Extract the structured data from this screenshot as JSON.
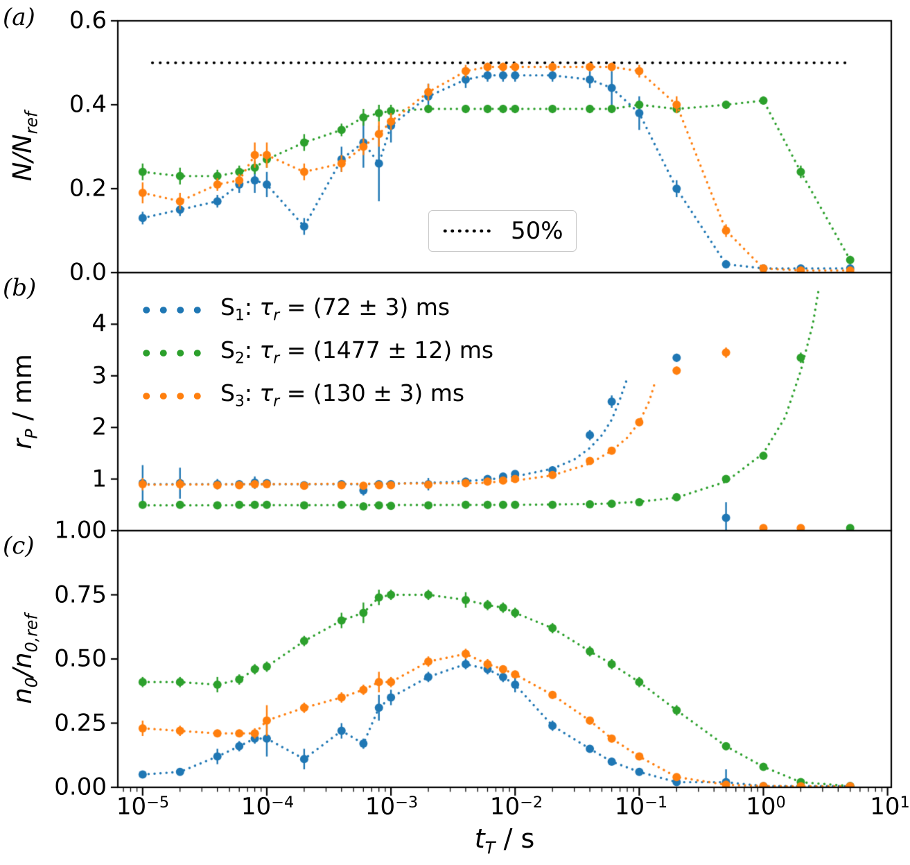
{
  "panels": {
    "a": "(a)",
    "b": "(b)",
    "c": "(c)"
  },
  "colors": {
    "s1": "#1f77b4",
    "s2": "#2ca02c",
    "s3": "#ff7f0e",
    "hline": "#000000"
  },
  "labels": {
    "ya": {
      "p1": "N/N",
      "s1": "ref"
    },
    "yb": {
      "p1": "r",
      "s1": "P",
      "p2": " / mm"
    },
    "yc": {
      "p1": "n",
      "s1": "0",
      "p2": "/n",
      "s2": "0,ref"
    },
    "x": {
      "p1": "t",
      "s1": "T",
      "p2": " / s"
    }
  },
  "legend_b": [
    {
      "p1": "S",
      "s1": "1",
      "p2": ": ",
      "tau": "τ",
      "taus": "r",
      "rest": " = (72 ± 3) ms"
    },
    {
      "p1": "S",
      "s1": "2",
      "p2": ": ",
      "tau": "τ",
      "taus": "r",
      "rest": " = (1477 ± 12) ms"
    },
    {
      "p1": "S",
      "s1": "3",
      "p2": ": ",
      "tau": "τ",
      "taus": "r",
      "rest": " = (130 ± 3) ms"
    }
  ],
  "xaxis": {
    "scale": "log",
    "xlim_exp": [
      -5.2,
      1.03
    ],
    "ticks": [
      {
        "base": "10",
        "exp": "−5"
      },
      {
        "base": "10",
        "exp": "−4"
      },
      {
        "base": "10",
        "exp": "−3"
      },
      {
        "base": "10",
        "exp": "−2"
      },
      {
        "base": "10",
        "exp": "−1"
      },
      {
        "base": "10",
        "exp": "0"
      },
      {
        "base": "10",
        "exp": "1"
      }
    ]
  },
  "chart_data": [
    {
      "id": "a",
      "type": "scatter",
      "ylabel": "N/N_ref",
      "ylim": [
        0,
        0.6
      ],
      "yticks": [
        0,
        0.2,
        0.4,
        0.6
      ],
      "ytick_labels": [
        "0.0",
        "0.2",
        "0.4",
        "0.6"
      ],
      "hline": {
        "y": 0.5,
        "label": "50%",
        "color": "#000000",
        "style": "dotted"
      },
      "x": [
        1e-05,
        2e-05,
        4e-05,
        6e-05,
        8e-05,
        0.0001,
        0.0002,
        0.0004,
        0.0006,
        0.0008,
        0.001,
        0.002,
        0.004,
        0.006,
        0.008,
        0.01,
        0.02,
        0.04,
        0.06,
        0.1,
        0.2,
        0.5,
        1,
        2,
        5
      ],
      "series": [
        {
          "name": "S1",
          "color": "#1f77b4",
          "connect": true,
          "values": [
            0.13,
            0.15,
            0.17,
            0.21,
            0.22,
            0.21,
            0.11,
            0.27,
            0.31,
            0.26,
            0.35,
            0.42,
            0.46,
            0.47,
            0.47,
            0.47,
            0.47,
            0.46,
            0.44,
            0.38,
            0.2,
            0.02,
            0.01,
            0.01,
            0.01
          ],
          "errors": [
            0.015,
            0.015,
            0.015,
            0.02,
            0.03,
            0.03,
            0.02,
            0.03,
            0.06,
            0.09,
            0.04,
            0.03,
            0.02,
            0.015,
            0.015,
            0.015,
            0.015,
            0.02,
            0.04,
            0.04,
            0.02,
            0.01,
            0.005,
            0.005,
            0.005
          ]
        },
        {
          "name": "S2",
          "color": "#2ca02c",
          "connect": true,
          "values": [
            0.24,
            0.23,
            0.23,
            0.24,
            0.25,
            0.27,
            0.31,
            0.34,
            0.37,
            0.38,
            0.385,
            0.39,
            0.39,
            0.39,
            0.39,
            0.39,
            0.39,
            0.39,
            0.39,
            0.4,
            0.39,
            0.4,
            0.41,
            0.24,
            0.03
          ],
          "errors": [
            0.02,
            0.02,
            0.015,
            0.015,
            0.015,
            0.02,
            0.02,
            0.015,
            0.02,
            0.02,
            0.015,
            0.01,
            0.01,
            0.01,
            0.01,
            0.01,
            0.01,
            0.01,
            0.01,
            0.01,
            0.01,
            0.01,
            0.01,
            0.015,
            0.01
          ]
        },
        {
          "name": "S3",
          "color": "#ff7f0e",
          "connect": true,
          "values": [
            0.19,
            0.17,
            0.21,
            0.22,
            0.28,
            0.28,
            0.24,
            0.26,
            0.3,
            0.33,
            0.36,
            0.43,
            0.48,
            0.49,
            0.49,
            0.49,
            0.49,
            0.49,
            0.49,
            0.48,
            0.4,
            0.1,
            0.01,
            0.005,
            0.005
          ],
          "errors": [
            0.025,
            0.02,
            0.015,
            0.015,
            0.03,
            0.03,
            0.02,
            0.02,
            0.02,
            0.03,
            0.02,
            0.02,
            0.015,
            0.01,
            0.01,
            0.01,
            0.01,
            0.01,
            0.01,
            0.015,
            0.02,
            0.015,
            0.005,
            0.004,
            0.004
          ]
        }
      ]
    },
    {
      "id": "b",
      "type": "scatter",
      "ylabel": "r_P / mm",
      "ylim": [
        0,
        5
      ],
      "yticks": [
        1,
        2,
        3,
        4
      ],
      "ytick_labels": [
        "1",
        "2",
        "3",
        "4"
      ],
      "x": [
        1e-05,
        2e-05,
        4e-05,
        6e-05,
        8e-05,
        0.0001,
        0.0002,
        0.0004,
        0.0006,
        0.0008,
        0.001,
        0.002,
        0.004,
        0.006,
        0.008,
        0.01,
        0.02,
        0.04,
        0.06,
        0.1,
        0.2,
        0.5,
        1,
        2,
        5
      ],
      "series": [
        {
          "name": "S1",
          "color": "#1f77b4",
          "connect": false,
          "values": [
            0.92,
            0.92,
            0.9,
            0.9,
            0.93,
            0.92,
            0.88,
            0.9,
            0.78,
            0.9,
            0.9,
            0.9,
            0.95,
            1.0,
            1.05,
            1.1,
            1.17,
            1.85,
            2.5,
            null,
            3.35,
            0.25,
            null,
            null,
            null
          ],
          "errors": [
            0.35,
            0.3,
            0.1,
            0.06,
            0.12,
            0.06,
            0.06,
            0.06,
            0.1,
            0.06,
            0.06,
            0.12,
            0.06,
            0.06,
            0.06,
            0.06,
            0.08,
            0.1,
            0.12,
            null,
            0.08,
            0.3,
            null,
            null,
            null
          ]
        },
        {
          "name": "S2",
          "color": "#2ca02c",
          "connect": false,
          "values": [
            0.5,
            0.5,
            0.49,
            0.5,
            0.5,
            0.5,
            0.49,
            0.5,
            0.47,
            0.49,
            0.48,
            0.49,
            0.5,
            0.5,
            0.5,
            0.5,
            0.5,
            0.51,
            0.52,
            0.55,
            0.65,
            1.0,
            1.45,
            3.35,
            0.05
          ],
          "errors": [
            0.06,
            0.06,
            0.05,
            0.05,
            0.05,
            0.05,
            0.05,
            0.05,
            0.05,
            0.05,
            0.05,
            0.05,
            0.05,
            0.05,
            0.05,
            0.05,
            0.05,
            0.05,
            0.05,
            0.05,
            0.05,
            0.06,
            0.06,
            0.1,
            0.04
          ]
        },
        {
          "name": "S3",
          "color": "#ff7f0e",
          "connect": false,
          "values": [
            0.9,
            0.9,
            0.88,
            0.88,
            0.9,
            0.9,
            0.87,
            0.88,
            0.87,
            0.88,
            0.88,
            0.89,
            0.92,
            0.95,
            0.97,
            1.0,
            1.08,
            1.35,
            1.55,
            2.1,
            3.1,
            3.45,
            0.05,
            0.05,
            null
          ],
          "errors": [
            0.12,
            0.1,
            0.06,
            0.06,
            0.06,
            0.06,
            0.06,
            0.06,
            0.06,
            0.06,
            0.06,
            0.06,
            0.05,
            0.05,
            0.05,
            0.05,
            0.05,
            0.06,
            0.06,
            0.07,
            0.08,
            0.1,
            0.04,
            0.04,
            null
          ]
        }
      ],
      "fits": [
        {
          "name": "S1 fit",
          "color": "#1f77b4",
          "points": [
            [
              1e-05,
              0.9
            ],
            [
              0.0005,
              0.9
            ],
            [
              0.001,
              0.91
            ],
            [
              0.003,
              0.94
            ],
            [
              0.006,
              0.99
            ],
            [
              0.01,
              1.05
            ],
            [
              0.02,
              1.2
            ],
            [
              0.03,
              1.38
            ],
            [
              0.04,
              1.6
            ],
            [
              0.05,
              1.85
            ],
            [
              0.06,
              2.15
            ],
            [
              0.07,
              2.55
            ],
            [
              0.08,
              2.95
            ]
          ]
        },
        {
          "name": "S2 fit",
          "color": "#2ca02c",
          "points": [
            [
              1e-05,
              0.49
            ],
            [
              0.01,
              0.5
            ],
            [
              0.05,
              0.52
            ],
            [
              0.1,
              0.56
            ],
            [
              0.2,
              0.64
            ],
            [
              0.5,
              0.95
            ],
            [
              1,
              1.5
            ],
            [
              1.5,
              2.2
            ],
            [
              2,
              3.1
            ],
            [
              2.5,
              4.0
            ],
            [
              2.8,
              4.7
            ]
          ]
        },
        {
          "name": "S3 fit",
          "color": "#ff7f0e",
          "points": [
            [
              1e-05,
              0.89
            ],
            [
              0.005,
              0.92
            ],
            [
              0.01,
              0.97
            ],
            [
              0.02,
              1.07
            ],
            [
              0.04,
              1.3
            ],
            [
              0.06,
              1.55
            ],
            [
              0.08,
              1.8
            ],
            [
              0.1,
              2.1
            ],
            [
              0.12,
              2.5
            ],
            [
              0.135,
              2.9
            ]
          ]
        }
      ]
    },
    {
      "id": "c",
      "type": "scatter",
      "ylabel": "n_0/n_0,ref",
      "ylim": [
        0,
        1
      ],
      "yticks": [
        0,
        0.25,
        0.5,
        0.75,
        1
      ],
      "ytick_labels": [
        "0.00",
        "0.25",
        "0.50",
        "0.75",
        "1.00"
      ],
      "x": [
        1e-05,
        2e-05,
        4e-05,
        6e-05,
        8e-05,
        0.0001,
        0.0002,
        0.0004,
        0.0006,
        0.0008,
        0.001,
        0.002,
        0.004,
        0.006,
        0.008,
        0.01,
        0.02,
        0.04,
        0.06,
        0.1,
        0.2,
        0.5,
        1,
        2,
        5
      ],
      "series": [
        {
          "name": "S1",
          "color": "#1f77b4",
          "connect": true,
          "values": [
            0.05,
            0.06,
            0.12,
            0.16,
            0.19,
            0.19,
            0.11,
            0.22,
            0.17,
            0.31,
            0.35,
            0.43,
            0.48,
            0.46,
            0.43,
            0.4,
            0.24,
            0.15,
            0.1,
            0.06,
            0.02,
            0.02,
            0.005,
            0.005,
            0.005
          ],
          "errors": [
            0.01,
            0.01,
            0.03,
            0.02,
            0.02,
            0.07,
            0.04,
            0.03,
            0.02,
            0.05,
            0.03,
            0.02,
            0.02,
            0.02,
            0.02,
            0.03,
            0.02,
            0.015,
            0.01,
            0.01,
            0.01,
            0.05,
            0.005,
            0.004,
            0.004
          ]
        },
        {
          "name": "S2",
          "color": "#2ca02c",
          "connect": true,
          "values": [
            0.41,
            0.41,
            0.4,
            0.42,
            0.46,
            0.47,
            0.57,
            0.65,
            0.68,
            0.74,
            0.75,
            0.75,
            0.73,
            0.71,
            0.7,
            0.68,
            0.62,
            0.53,
            0.48,
            0.41,
            0.3,
            0.16,
            0.08,
            0.02,
            0.005
          ],
          "errors": [
            0.02,
            0.02,
            0.03,
            0.02,
            0.02,
            0.02,
            0.02,
            0.03,
            0.04,
            0.03,
            0.02,
            0.02,
            0.03,
            0.02,
            0.02,
            0.02,
            0.02,
            0.02,
            0.02,
            0.02,
            0.02,
            0.015,
            0.01,
            0.008,
            0.004
          ]
        },
        {
          "name": "S3",
          "color": "#ff7f0e",
          "connect": true,
          "values": [
            0.23,
            0.22,
            0.21,
            0.21,
            0.21,
            0.26,
            0.31,
            0.35,
            0.38,
            0.41,
            0.41,
            0.49,
            0.52,
            0.48,
            0.46,
            0.44,
            0.36,
            0.26,
            0.19,
            0.12,
            0.04,
            0.01,
            0.005,
            0.004,
            0.004
          ],
          "errors": [
            0.03,
            0.02,
            0.015,
            0.015,
            0.02,
            0.06,
            0.02,
            0.02,
            0.02,
            0.04,
            0.02,
            0.02,
            0.02,
            0.02,
            0.015,
            0.015,
            0.015,
            0.015,
            0.015,
            0.01,
            0.01,
            0.008,
            0.004,
            0.004,
            0.004
          ]
        }
      ]
    }
  ]
}
